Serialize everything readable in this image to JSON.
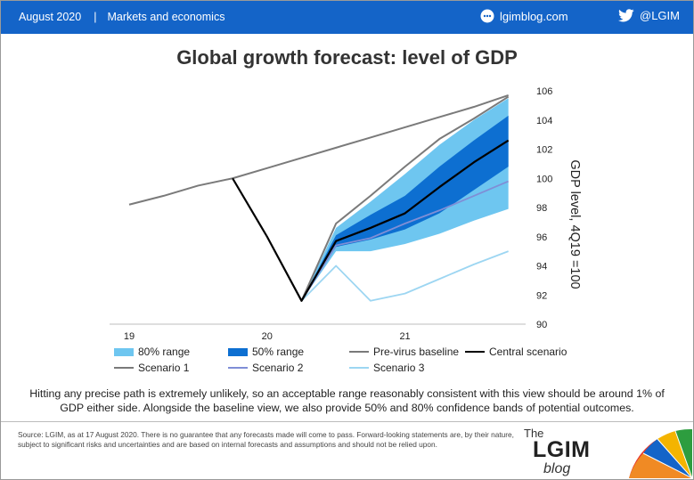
{
  "header": {
    "date": "August 2020",
    "separator": "|",
    "section": "Markets and economics",
    "blog_link": "lgimblog.com",
    "twitter": "@LGIM"
  },
  "colors": {
    "brand_blue": "#1464c8",
    "range80": "#6ec6f0",
    "range50": "#0d6fd1",
    "baseline": "#7a7a7a",
    "central": "#000000",
    "scenario1": "#7a7a7a",
    "scenario2": "#7f8ed6",
    "scenario3": "#9dd6f2"
  },
  "legend": {
    "range80": "80% range",
    "range50": "50% range",
    "baseline": "Pre-virus baseline",
    "central": "Central scenario",
    "scenario1": "Scenario 1",
    "scenario2": "Scenario 2",
    "scenario3": "Scenario 3"
  },
  "caption": "Hitting any precise path is extremely unlikely, so an acceptable range reasonably consistent with this view should be around 1% of GDP either side. Alongside the baseline view, we also provide 50% and 80% confidence bands of potential outcomes.",
  "source": "Source: LGIM, as at 17 August 2020. There is no guarantee that any forecasts made will come to pass. Forward-looking statements are, by their nature, subject to significant risks and uncertainties and are based on internal forecasts and assumptions and should not be relied upon.",
  "brand": {
    "the": "The",
    "name": "LGIM",
    "blog": "blog"
  },
  "chart_data": {
    "type": "line",
    "title": "Global growth forecast: level of GDP",
    "ylabel": "GDP level, 4Q19 =100",
    "y_axis_position": "right",
    "ylim": [
      90,
      106
    ],
    "yticks": [
      90,
      92,
      94,
      96,
      98,
      100,
      102,
      104,
      106
    ],
    "x_ticks": [
      {
        "label": "19",
        "x": 0
      },
      {
        "label": "20",
        "x": 4
      },
      {
        "label": "21",
        "x": 8
      }
    ],
    "xlim": [
      0,
      11.5
    ],
    "grid": false,
    "legend_position": "bottom",
    "series": [
      {
        "key": "baseline",
        "name": "Pre-virus baseline",
        "x": [
          0,
          1,
          2,
          3,
          4,
          5,
          6,
          7,
          8,
          9,
          10,
          11
        ],
        "values": [
          98.2,
          98.8,
          99.5,
          100.0,
          100.7,
          101.4,
          102.1,
          102.8,
          103.5,
          104.2,
          104.9,
          105.7
        ]
      },
      {
        "key": "central",
        "name": "Central scenario",
        "x": [
          3,
          4,
          5,
          6,
          7,
          8,
          9,
          10,
          11
        ],
        "values": [
          100.0,
          96.0,
          91.6,
          95.7,
          96.6,
          97.6,
          99.4,
          101.1,
          102.6
        ]
      },
      {
        "key": "scenario1",
        "name": "Scenario 1",
        "x": [
          5,
          6,
          7,
          8,
          9,
          10,
          11
        ],
        "values": [
          91.6,
          96.9,
          98.8,
          100.8,
          102.7,
          104.1,
          105.6
        ]
      },
      {
        "key": "scenario2",
        "name": "Scenario 2",
        "x": [
          5,
          6,
          7,
          8,
          9,
          10,
          11
        ],
        "values": [
          91.6,
          95.4,
          95.9,
          96.9,
          97.8,
          98.8,
          99.8
        ]
      },
      {
        "key": "scenario3",
        "name": "Scenario 3",
        "x": [
          5,
          6,
          7,
          8,
          9,
          10,
          11
        ],
        "values": [
          91.6,
          94.0,
          91.6,
          92.1,
          93.1,
          94.1,
          95.0
        ]
      }
    ],
    "bands": [
      {
        "key": "range80",
        "name": "80% range",
        "x": [
          5,
          6,
          7,
          8,
          9,
          10,
          11
        ],
        "low": [
          91.6,
          95.0,
          95.0,
          95.5,
          96.2,
          97.1,
          97.9
        ],
        "high": [
          91.6,
          96.6,
          98.4,
          100.3,
          102.3,
          104.0,
          105.5
        ]
      },
      {
        "key": "range50",
        "name": "50% range",
        "x": [
          5,
          6,
          7,
          8,
          9,
          10,
          11
        ],
        "low": [
          91.6,
          95.3,
          95.8,
          96.5,
          97.6,
          99.2,
          100.8
        ],
        "high": [
          91.6,
          96.1,
          97.5,
          98.8,
          100.8,
          102.6,
          104.3
        ]
      }
    ]
  }
}
